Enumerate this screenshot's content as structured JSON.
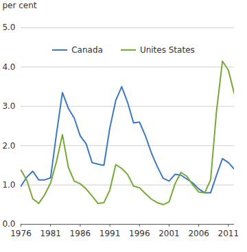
{
  "chart_data": {
    "type": "line",
    "x": [
      1976,
      1977,
      1978,
      1979,
      1980,
      1981,
      1982,
      1983,
      1984,
      1985,
      1986,
      1987,
      1988,
      1989,
      1990,
      1991,
      1992,
      1993,
      1994,
      1995,
      1996,
      1997,
      1998,
      1999,
      2000,
      2001,
      2002,
      2003,
      2004,
      2005,
      2006,
      2007,
      2008,
      2009,
      2010,
      2011,
      2012
    ],
    "series": [
      {
        "name": "Canada",
        "color": "#3a78c0",
        "values": [
          0.97,
          1.2,
          1.35,
          1.13,
          1.13,
          1.18,
          2.3,
          3.35,
          2.95,
          2.7,
          2.25,
          2.05,
          1.57,
          1.53,
          1.5,
          2.45,
          3.15,
          3.5,
          3.1,
          2.58,
          2.6,
          2.25,
          1.82,
          1.47,
          1.17,
          1.1,
          1.27,
          1.25,
          1.15,
          1.05,
          0.9,
          0.8,
          0.8,
          1.25,
          1.67,
          1.57,
          1.4
        ]
      },
      {
        "name": "Unites States",
        "color": "#74a934",
        "values": [
          1.38,
          1.12,
          0.65,
          0.53,
          0.75,
          1.05,
          1.6,
          2.28,
          1.45,
          1.1,
          1.03,
          0.9,
          0.72,
          0.53,
          0.55,
          0.87,
          1.52,
          1.42,
          1.27,
          0.97,
          0.93,
          0.78,
          0.64,
          0.55,
          0.5,
          0.57,
          1.03,
          1.32,
          1.22,
          1.0,
          0.82,
          0.8,
          1.13,
          2.88,
          4.15,
          3.92,
          3.32
        ]
      }
    ],
    "y_label": "per cent",
    "xlim": [
      1976,
      2012
    ],
    "xticks": [
      1976,
      1981,
      1986,
      1991,
      1996,
      2001,
      2006,
      2011
    ],
    "ylim": [
      0,
      5
    ],
    "yticks": [
      0,
      1,
      2,
      3,
      4,
      5
    ],
    "grid": true,
    "legend": "top"
  }
}
